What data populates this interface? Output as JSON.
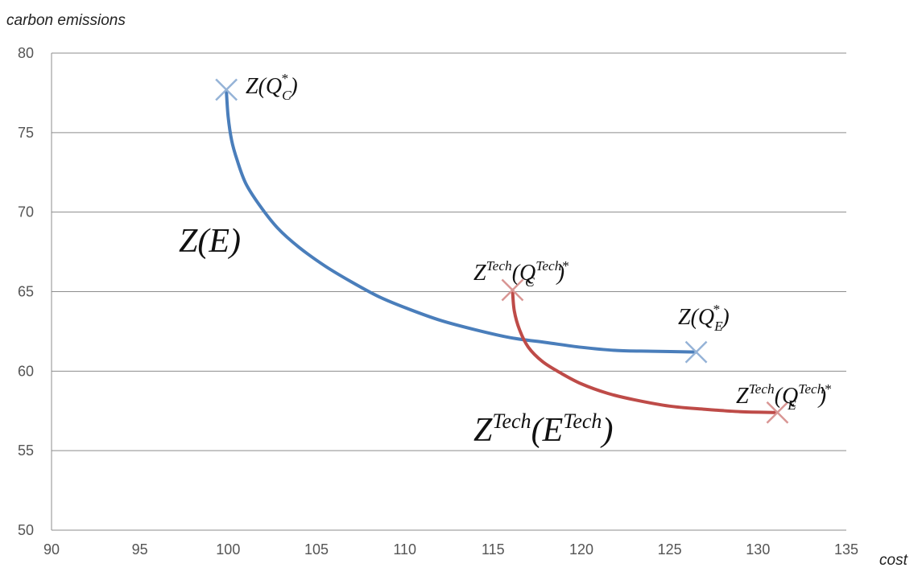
{
  "chart_data": {
    "type": "line",
    "xlabel": "cost",
    "ylabel": "carbon emissions",
    "xlim": [
      90,
      135
    ],
    "ylim": [
      50,
      80
    ],
    "xticks": [
      90,
      95,
      100,
      105,
      110,
      115,
      120,
      125,
      130,
      135
    ],
    "yticks": [
      50,
      55,
      60,
      65,
      70,
      75,
      80
    ],
    "grid": "horizontal",
    "series": [
      {
        "name": "Z(E)",
        "color": "#4a7ebb",
        "points": [
          [
            99.9,
            77.6
          ],
          [
            100.0,
            76.0
          ],
          [
            100.2,
            74.5
          ],
          [
            100.5,
            73.3
          ],
          [
            101.0,
            71.8
          ],
          [
            101.8,
            70.4
          ],
          [
            102.8,
            69.0
          ],
          [
            104.0,
            67.8
          ],
          [
            105.5,
            66.6
          ],
          [
            107.0,
            65.6
          ],
          [
            108.5,
            64.7
          ],
          [
            110.0,
            64.0
          ],
          [
            112.0,
            63.2
          ],
          [
            114.0,
            62.6
          ],
          [
            116.0,
            62.1
          ],
          [
            118.0,
            61.8
          ],
          [
            120.0,
            61.5
          ],
          [
            122.0,
            61.3
          ],
          [
            124.0,
            61.25
          ],
          [
            126.5,
            61.2
          ]
        ]
      },
      {
        "name": "Z^Tech(E^Tech)",
        "color": "#be4b48",
        "points": [
          [
            116.1,
            65.1
          ],
          [
            116.2,
            63.8
          ],
          [
            116.5,
            62.6
          ],
          [
            117.0,
            61.5
          ],
          [
            117.8,
            60.6
          ],
          [
            118.8,
            59.9
          ],
          [
            120.0,
            59.2
          ],
          [
            121.5,
            58.6
          ],
          [
            123.0,
            58.2
          ],
          [
            125.0,
            57.8
          ],
          [
            127.0,
            57.6
          ],
          [
            129.0,
            57.45
          ],
          [
            131.0,
            57.4
          ]
        ]
      }
    ],
    "markers": [
      {
        "label": "Z(Q_C^*)",
        "x": 99.9,
        "y": 77.7,
        "color": "#95b3d7"
      },
      {
        "label": "Z(Q_E^*)",
        "x": 126.5,
        "y": 61.2,
        "color": "#95b3d7"
      },
      {
        "label": "Z^Tech(Q_C^Tech*)",
        "x": 116.1,
        "y": 65.1,
        "color": "#d99694"
      },
      {
        "label": "Z^Tech(Q_E^Tech*)",
        "x": 131.1,
        "y": 57.4,
        "color": "#d99694"
      }
    ],
    "annotations": {
      "z_e": {
        "base": "Z(",
        "main": "E",
        "close": ")"
      },
      "z_qc": {
        "base": "Z(Q",
        "sup": "*",
        "sub": "C",
        "close": ")"
      },
      "z_qe": {
        "base": "Z(Q",
        "sup": "*",
        "sub": "E",
        "close": ")"
      },
      "ztech_qc": {
        "base": "Z",
        "sup1": "Tech",
        "mid": "(Q",
        "sup": "Tech*",
        "sub": "C",
        "close": ")"
      },
      "ztech_qe": {
        "base": "Z",
        "sup1": "Tech",
        "mid": "(Q",
        "sup": "Tech*",
        "sub": "E",
        "close": ")"
      },
      "ztech_e": {
        "base": "Z",
        "sup1": "Tech",
        "mid": "(E",
        "sup": "Tech",
        "close": ")"
      }
    }
  }
}
